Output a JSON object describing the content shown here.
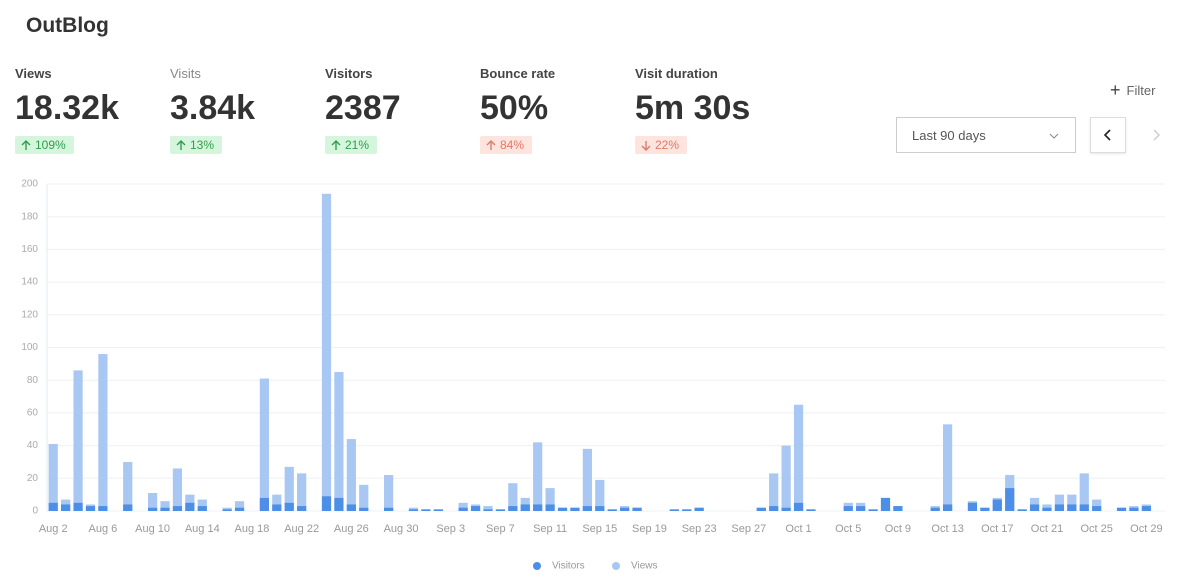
{
  "header": {
    "title": "OutBlog"
  },
  "stats": [
    {
      "label": "Views",
      "value": "18.32k",
      "change": "109%"
    },
    {
      "label": "Visits",
      "value": "3.84k",
      "change": "13%"
    },
    {
      "label": "Visitors",
      "value": "2387",
      "change": "21%"
    },
    {
      "label": "Bounce rate",
      "value": "50%",
      "change": "84%"
    },
    {
      "label": "Visit duration",
      "value": "5m 30s",
      "change": "22%"
    }
  ],
  "controls": {
    "filter": "Filter",
    "period": "Last 90 days"
  },
  "chart_data": {
    "type": "bar",
    "categories": [
      "Aug 2",
      null,
      null,
      null,
      "Aug 6",
      null,
      null,
      null,
      "Aug 10",
      null,
      null,
      null,
      "Aug 14",
      null,
      null,
      null,
      "Aug 18",
      null,
      null,
      null,
      "Aug 22",
      null,
      null,
      null,
      "Aug 26",
      null,
      null,
      null,
      "Aug 30",
      null,
      null,
      null,
      "Sep 3",
      null,
      null,
      null,
      "Sep 7",
      null,
      null,
      null,
      "Sep 11",
      null,
      null,
      null,
      "Sep 15",
      null,
      null,
      null,
      "Sep 19",
      null,
      null,
      null,
      "Sep 23",
      null,
      null,
      null,
      "Sep 27",
      null,
      null,
      null,
      "Oct 1",
      null,
      null,
      null,
      "Oct 5",
      null,
      null,
      null,
      "Oct 9",
      null,
      null,
      null,
      "Oct 13",
      null,
      null,
      null,
      "Oct 17",
      null,
      null,
      null,
      "Oct 21",
      null,
      null,
      null,
      "Oct 25",
      null,
      null,
      null,
      "Oct 29",
      null
    ],
    "series": [
      {
        "name": "Visitors",
        "color": "#4d8ee6",
        "values": [
          5,
          4,
          5,
          3,
          3,
          0,
          4,
          0,
          2,
          2,
          3,
          5,
          3,
          0,
          1,
          2,
          0,
          8,
          4,
          5,
          3,
          0,
          9,
          8,
          4,
          2,
          0,
          2,
          0,
          1,
          1,
          1,
          0,
          2,
          3,
          1,
          1,
          3,
          4,
          4,
          4,
          2,
          2,
          3,
          3,
          1,
          2,
          2,
          0,
          0,
          1,
          1,
          2,
          0,
          0,
          0,
          0,
          2,
          3,
          2,
          5,
          1,
          0,
          0,
          3,
          3,
          1,
          8,
          3,
          0,
          0,
          2,
          4,
          0,
          5,
          2,
          7,
          14,
          1,
          4,
          2,
          4,
          4,
          4,
          3,
          0,
          2,
          2,
          3,
          0
        ]
      },
      {
        "name": "Views",
        "color": "#a8c7f2",
        "values": [
          41,
          7,
          86,
          4,
          96,
          0,
          30,
          0,
          11,
          6,
          26,
          10,
          7,
          0,
          2,
          6,
          0,
          81,
          10,
          27,
          23,
          0,
          194,
          85,
          44,
          16,
          0,
          22,
          0,
          2,
          1,
          1,
          0,
          5,
          4,
          3,
          1,
          17,
          8,
          42,
          14,
          2,
          2,
          38,
          19,
          1,
          3,
          2,
          0,
          0,
          1,
          1,
          2,
          0,
          0,
          0,
          0,
          2,
          23,
          40,
          65,
          1,
          0,
          0,
          5,
          5,
          1,
          8,
          3,
          0,
          0,
          3,
          53,
          0,
          6,
          2,
          8,
          22,
          1,
          8,
          4,
          10,
          10,
          23,
          7,
          0,
          2,
          3,
          4,
          0
        ]
      }
    ],
    "ylim": [
      0,
      200
    ],
    "yticks": [
      0,
      20,
      40,
      60,
      80,
      100,
      120,
      140,
      160,
      180,
      200
    ],
    "grid": true,
    "legend": "bottom"
  }
}
